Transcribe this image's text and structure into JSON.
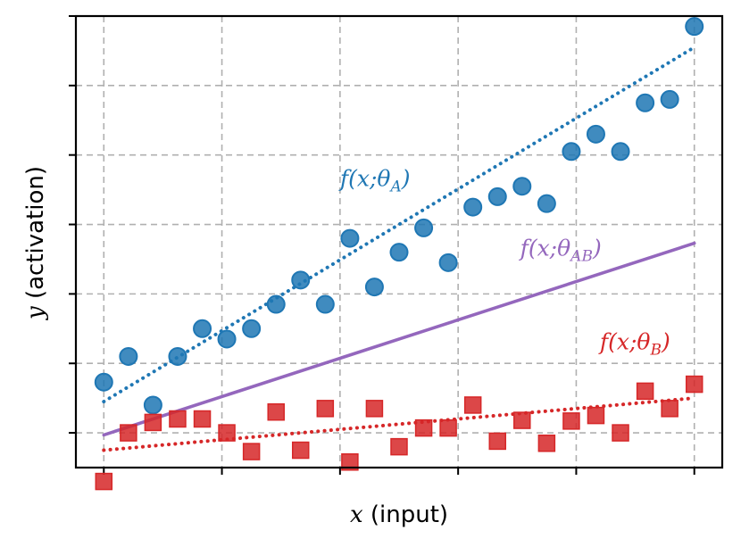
{
  "chart_data": {
    "type": "scatter",
    "title": "",
    "xlabel_symbol": "x",
    "xlabel_text": "(input)",
    "ylabel_symbol": "y",
    "ylabel_text": "(activation)",
    "xlim": [
      -0.0473,
      1.0473
    ],
    "ylim": [
      0,
      6.5
    ],
    "x_ticks": [
      0,
      0.2,
      0.4,
      0.6,
      0.8,
      1.0
    ],
    "y_ticks": [
      0.5,
      1.5,
      2.5,
      3.5,
      4.5,
      5.5,
      6.5
    ],
    "tick_labels_visible": false,
    "grid": true,
    "x": [
      0.0,
      0.0417,
      0.0833,
      0.125,
      0.1667,
      0.2083,
      0.25,
      0.2917,
      0.3333,
      0.375,
      0.4167,
      0.4583,
      0.5,
      0.5417,
      0.5833,
      0.625,
      0.6667,
      0.7083,
      0.75,
      0.7917,
      0.8333,
      0.875,
      0.9167,
      0.9583,
      1.0
    ],
    "series": [
      {
        "name": "A",
        "label": "f(x;θA)",
        "symbol": "f(x;",
        "theta": "θ",
        "subscript": "A",
        "close": ")",
        "color": "#1f77b4",
        "marker": "circle",
        "values": [
          1.23,
          1.6,
          0.9,
          1.6,
          2.0,
          1.85,
          2.0,
          2.35,
          2.7,
          2.35,
          3.3,
          2.6,
          3.1,
          3.45,
          2.95,
          3.75,
          3.9,
          4.05,
          3.8,
          4.55,
          4.8,
          4.55,
          5.25,
          5.3,
          6.35
        ],
        "fit": [
          0.95,
          6.05
        ],
        "fit_style": "dotted"
      },
      {
        "name": "B",
        "label": "f(x;θB)",
        "symbol": "f(x;",
        "theta": "θ",
        "subscript": "B",
        "close": ")",
        "color": "#d62728",
        "marker": "square",
        "values": [
          -0.2,
          0.5,
          0.65,
          0.7,
          0.7,
          0.5,
          0.23,
          0.8,
          0.25,
          0.85,
          0.08,
          0.85,
          0.3,
          0.57,
          0.57,
          0.9,
          0.38,
          0.68,
          0.35,
          0.67,
          0.75,
          0.5,
          1.1,
          0.85,
          1.2
        ],
        "fit": [
          0.25,
          1.0
        ],
        "fit_style": "dotted"
      },
      {
        "name": "AB",
        "label": "f(x;θAB)",
        "symbol": "f(x;",
        "theta": "θ",
        "subscript": "AB",
        "close": ")",
        "color": "#9467bd",
        "marker": "none",
        "values": [],
        "fit": [
          0.47,
          3.23
        ],
        "fit_style": "solid"
      }
    ],
    "annotations": [
      {
        "series": "A",
        "text": "f(x;θA)",
        "at": [
          0.4,
          4.05
        ]
      },
      {
        "series": "AB",
        "text": "f(x;θAB)",
        "at": [
          0.705,
          3.05
        ]
      },
      {
        "series": "B",
        "text": "f(x;θB)",
        "at": [
          0.84,
          1.7
        ]
      }
    ]
  }
}
